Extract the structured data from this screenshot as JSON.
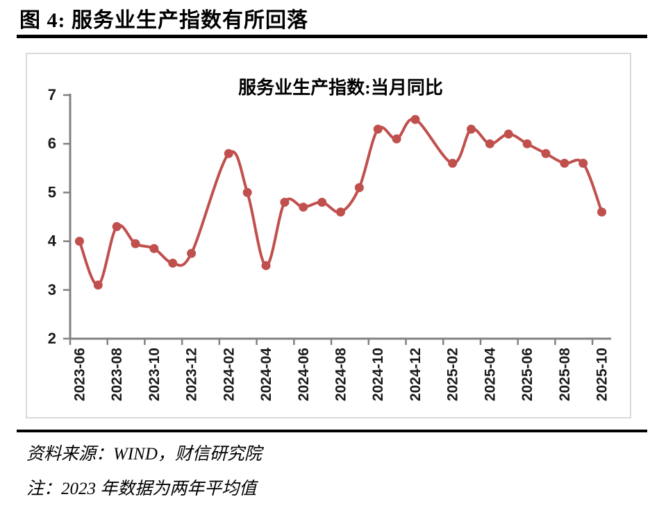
{
  "figure": {
    "title": "图 4: 服务业生产指数有所回落"
  },
  "notes": {
    "source": "资料来源：WIND，财信研究院",
    "note": "注：2023 年数据为两年平均值"
  },
  "colors": {
    "series_red": "#C0504D",
    "axis_gray": "#808080",
    "tick_label": "#1a1a1a",
    "chart_border": "#D9D9D9",
    "text_black": "#000000"
  },
  "chart_data": {
    "type": "line",
    "title": "服务业生产指数:当月同比",
    "series_name": "服务业生产指数:当月同比",
    "categories": [
      "2023-06",
      "2023-07",
      "2023-08",
      "2023-09",
      "2023-10",
      "2023-11",
      "2023-12",
      "2024-01",
      "2024-02",
      "2024-03",
      "2024-04",
      "2024-05",
      "2024-06",
      "2024-07",
      "2024-08",
      "2024-09",
      "2024-10",
      "2024-11",
      "2024-12",
      "2025-01",
      "2025-02",
      "2025-03",
      "2025-04",
      "2025-05",
      "2025-06",
      "2025-07",
      "2025-08",
      "2025-09",
      "2025-10"
    ],
    "values": [
      4.0,
      3.1,
      4.3,
      3.95,
      3.85,
      3.55,
      3.75,
      null,
      5.8,
      5.0,
      3.5,
      4.8,
      4.7,
      4.8,
      4.6,
      5.1,
      6.3,
      6.1,
      6.5,
      null,
      5.6,
      6.3,
      6.0,
      6.2,
      6.0,
      5.8,
      5.6,
      5.6,
      4.6
    ],
    "x_label_every": 2,
    "x_tick_labels": [
      "2023-06",
      "2023-08",
      "2023-10",
      "2023-12",
      "2024-02",
      "2024-04",
      "2024-06",
      "2024-08",
      "2024-10",
      "2024-12",
      "2025-02",
      "2025-04",
      "2025-06",
      "2025-08",
      "2025-10"
    ],
    "ylim": [
      2,
      7
    ],
    "y_ticks": [
      2,
      3,
      4,
      5,
      6,
      7
    ],
    "grid": false,
    "legend": "none",
    "smooth": true,
    "markers": true
  }
}
